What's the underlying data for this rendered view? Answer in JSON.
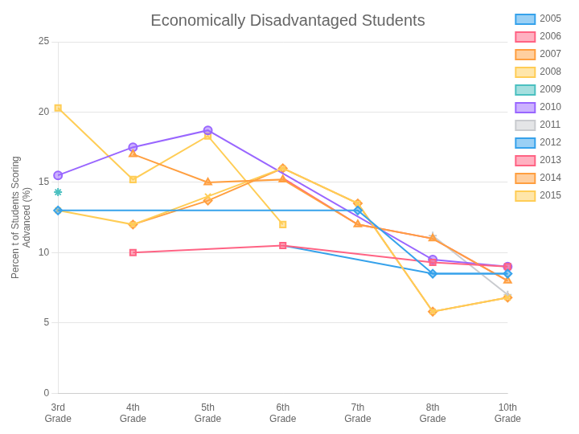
{
  "chart_data": {
    "type": "line",
    "title": "Economically Disadvantaged Students",
    "ylabel": "Percen t of Students Scoring\nAdvanced (%)",
    "categories": [
      "3rd\nGrade",
      "4th\nGrade",
      "5th\nGrade",
      "6th\nGrade",
      "7th\nGrade",
      "8th\nGrade",
      "10th\nGrade"
    ],
    "series": [
      {
        "name": "2005",
        "marker": "diamond",
        "values": [
          13.0,
          null,
          null,
          null,
          13.0,
          8.5,
          8.5
        ]
      },
      {
        "name": "2006",
        "marker": "square",
        "values": [
          null,
          10.0,
          null,
          10.5,
          null,
          9.3,
          9.0
        ]
      },
      {
        "name": "2007",
        "marker": "triangle",
        "values": [
          null,
          17.0,
          15.0,
          15.2,
          12.0,
          11.0,
          8.0
        ]
      },
      {
        "name": "2008",
        "marker": "x",
        "values": [
          13.0,
          12.0,
          14.0,
          16.0,
          13.5,
          5.8,
          6.8
        ]
      },
      {
        "name": "2009",
        "marker": "star",
        "values": [
          14.3,
          null,
          null,
          null,
          null,
          null,
          null
        ]
      },
      {
        "name": "2010",
        "marker": "circle",
        "values": [
          15.5,
          17.5,
          18.7,
          null,
          null,
          9.5,
          9.0
        ]
      },
      {
        "name": "2011",
        "marker": "plus",
        "values": [
          null,
          null,
          null,
          null,
          null,
          11.2,
          7.0
        ]
      },
      {
        "name": "2012",
        "marker": "none",
        "values": [
          null,
          null,
          null,
          10.5,
          null,
          8.5,
          8.5
        ]
      },
      {
        "name": "2013",
        "marker": "none",
        "values": [
          null,
          null,
          null,
          15.3,
          12.0,
          11.0,
          8.0
        ]
      },
      {
        "name": "2014",
        "marker": "diamond",
        "values": [
          null,
          12.0,
          13.7,
          16.0,
          13.5,
          5.8,
          6.8
        ]
      },
      {
        "name": "2015",
        "marker": "square",
        "values": [
          20.3,
          15.2,
          18.3,
          12.0,
          null,
          null,
          null
        ]
      }
    ],
    "ylim": [
      0,
      25
    ],
    "yticks": [
      0,
      5,
      10,
      15,
      20,
      25
    ],
    "grid": true,
    "legend": "right"
  }
}
